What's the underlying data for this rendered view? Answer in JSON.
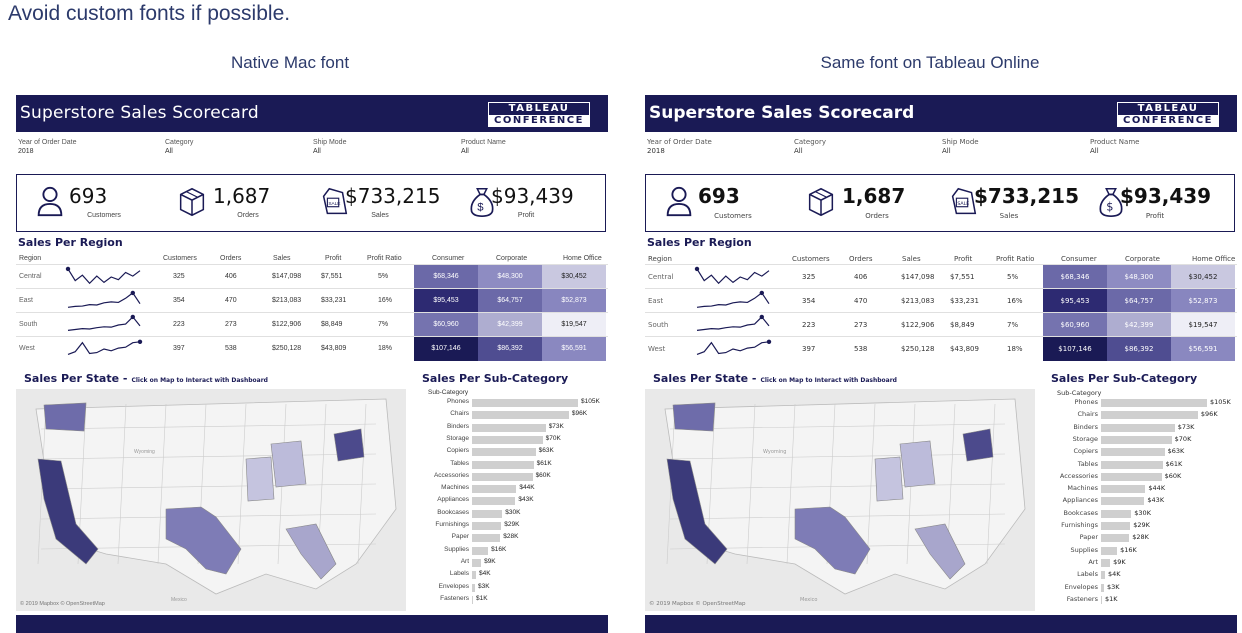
{
  "page": {
    "heading": "Avoid custom fonts if possible.",
    "caption_left": "Native Mac font",
    "caption_right": "Same font on Tableau Online"
  },
  "dashboard": {
    "title": "Superstore Sales Scorecard",
    "logo_top": "TABLEAU",
    "logo_bottom": "CONFERENCE",
    "filters": [
      {
        "label": "Year of Order Date",
        "value": "2018"
      },
      {
        "label": "Category",
        "value": "All"
      },
      {
        "label": "Ship Mode",
        "value": "All"
      },
      {
        "label": "Product Name",
        "value": "All"
      }
    ],
    "kpis": [
      {
        "icon": "person-icon",
        "value": "693",
        "label": "Customers"
      },
      {
        "icon": "box-icon",
        "value": "1,687",
        "label": "Orders"
      },
      {
        "icon": "sale-tag-icon",
        "value": "$733,215",
        "label": "Sales"
      },
      {
        "icon": "money-bag-icon",
        "value": "$93,439",
        "label": "Profit"
      }
    ],
    "region_section_title": "Sales Per Region",
    "region_headers": {
      "region": "Region",
      "customers": "Customers",
      "orders": "Orders",
      "sales": "Sales",
      "profit": "Profit",
      "profit_ratio": "Profit Ratio",
      "consumer": "Consumer",
      "corporate": "Corporate",
      "home_office": "Home Office"
    },
    "regions": [
      {
        "name": "Central",
        "customers": "325",
        "orders": "406",
        "sales": "$147,098",
        "profit": "$7,551",
        "ratio": "5%",
        "consumer": "$68,346",
        "corporate": "$48,300",
        "home_office": "$30,452",
        "spark": [
          0.95,
          0.3,
          0.6,
          0.15,
          0.55,
          0.2,
          0.5,
          0.35,
          0.75,
          0.55,
          0.85
        ]
      },
      {
        "name": "East",
        "customers": "354",
        "orders": "470",
        "sales": "$213,083",
        "profit": "$33,231",
        "ratio": "16%",
        "consumer": "$95,453",
        "corporate": "$64,757",
        "home_office": "$52,873",
        "spark": [
          0.15,
          0.2,
          0.22,
          0.3,
          0.28,
          0.4,
          0.45,
          0.42,
          0.65,
          0.95,
          0.35
        ]
      },
      {
        "name": "South",
        "customers": "223",
        "orders": "273",
        "sales": "$122,906",
        "profit": "$8,849",
        "ratio": "7%",
        "consumer": "$60,960",
        "corporate": "$42,399",
        "home_office": "$19,547",
        "spark": [
          0.2,
          0.25,
          0.3,
          0.28,
          0.35,
          0.4,
          0.38,
          0.5,
          0.55,
          0.95,
          0.45
        ]
      },
      {
        "name": "West",
        "customers": "397",
        "orders": "538",
        "sales": "$250,128",
        "profit": "$43,809",
        "ratio": "18%",
        "consumer": "$107,146",
        "corporate": "$86,392",
        "home_office": "$56,591",
        "spark": [
          0.2,
          0.35,
          0.85,
          0.25,
          0.3,
          0.5,
          0.4,
          0.55,
          0.6,
          0.85,
          0.9
        ]
      }
    ],
    "segment_colors": {
      "Central": [
        "#6b69a8",
        "#8e8cc2",
        "#c9c8e0"
      ],
      "East": [
        "#2d2a72",
        "#6b69a8",
        "#8886bf"
      ],
      "South": [
        "#7573af",
        "#aeadd0",
        "#eeeef6"
      ],
      "West": [
        "#1a1a55",
        "#4f4d91",
        "#8a88c0"
      ]
    },
    "state_section_title": "Sales Per State -",
    "state_section_subtitle": "Click on Map to Interact with Dashboard",
    "map_credit": "© 2019 Mapbox © OpenStreetMap",
    "map_places": [
      "Wyoming",
      "Mexico"
    ],
    "subcat_section_title": "Sales Per Sub-Category",
    "subcat_header": "Sub-Category",
    "chart_data": {
      "type": "bar",
      "categories": [
        "Phones",
        "Chairs",
        "Binders",
        "Storage",
        "Copiers",
        "Tables",
        "Accessories",
        "Machines",
        "Appliances",
        "Bookcases",
        "Furnishings",
        "Paper",
        "Supplies",
        "Art",
        "Labels",
        "Envelopes",
        "Fasteners"
      ],
      "values": [
        105,
        96,
        73,
        70,
        63,
        61,
        60,
        44,
        43,
        30,
        29,
        28,
        16,
        9,
        4,
        3,
        1
      ],
      "value_labels": [
        "$105K",
        "$96K",
        "$73K",
        "$70K",
        "$63K",
        "$61K",
        "$60K",
        "$44K",
        "$43K",
        "$30K",
        "$29K",
        "$28K",
        "$16K",
        "$9K",
        "$4K",
        "$3K",
        "$1K"
      ],
      "xlabel": "",
      "ylabel": "Sub-Category"
    }
  }
}
